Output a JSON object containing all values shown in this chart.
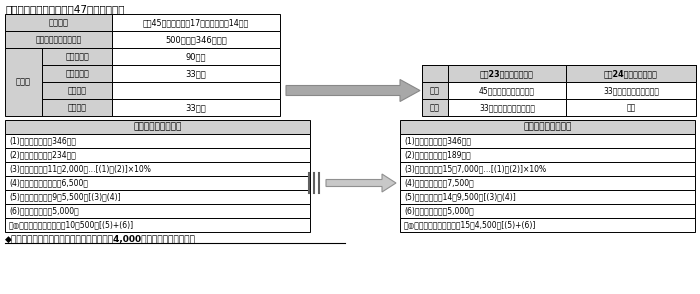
{
  "title_text": "《例：神栖　太郎さん（47歳）の場合》",
  "footer_text": "◆神栖　太郎さんの場合、市・県民税は５万4,000円の増額になります。",
  "family_label": "家族構成",
  "family_value": "妻（45歳）・長男（17歳）・長女（14歳）",
  "salary_label": "給与収入（給与所得）",
  "salary_value": "500万円（346万円）",
  "shokojo_label": "諸控除",
  "sub_labels": [
    "社会保険料",
    "配偶者控除",
    "扶養控除",
    "基礎控除"
  ],
  "sub_values": [
    "90万円",
    "33万円",
    "",
    "33万円"
  ],
  "right_top_headers": [
    "",
    "平成23年度【改正前】",
    "平成24年度【改正後】"
  ],
  "right_top_rows": [
    [
      "長男",
      "45万円（特定扶養控除）",
      "33万円（一般扶養控除）"
    ],
    [
      "長女",
      "33万円（一般扶養控除）",
      "なし"
    ]
  ],
  "left_bottom_title": "平　成　２３年　度",
  "left_bottom_rows": [
    "(1)　所　得　額：346万円",
    "(2)　控　除　額：234万円",
    "(3)　算出税額：11万2,000円…[(1)－(2)]×10%",
    "(4)　調整控除額：１万6,500円",
    "(5)　所得割額：）9万5,500円[(3)－(4)]",
    "(6)　均　等　割：5,000円",
    "　◎市・県民税　：年税額10万500円[(5)+(6)]"
  ],
  "right_bottom_title": "平　成　２４年　度",
  "right_bottom_rows": [
    "(1)　所　得　額：346万円",
    "(2)　控　除　額：189万円",
    "(3)　算出税額：15万7,000円…[(1)－(2)]×10%",
    "(4)　調整控除額：7,500円",
    "(5)　所得割額：14万9,500円[(3)－(4)]",
    "(6)　均　等　割：5,000円",
    "　◎市・県民税　：年税額15万4,500円[(5)+(6)]"
  ],
  "gray_light": "#d0d0d0",
  "gray_header": "#c8c8c8",
  "white": "#ffffff",
  "black": "#000000",
  "border_color": "#000000"
}
